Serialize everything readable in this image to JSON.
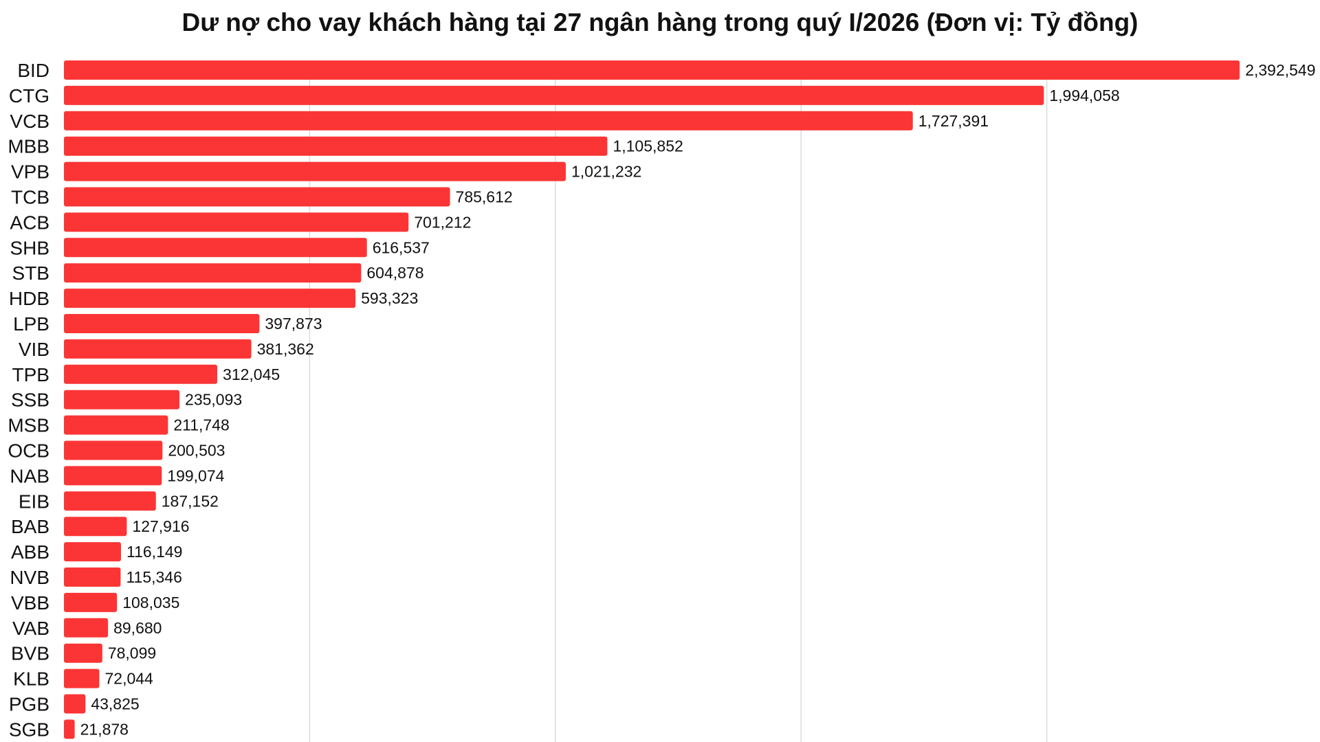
{
  "chart_data": {
    "type": "bar",
    "orientation": "horizontal",
    "title": "Dư nợ cho vay khách hàng tại 27 ngân hàng trong quý I/2026 (Đơn vị: Tỷ đồng)",
    "xlabel": "",
    "ylabel": "",
    "xlim": [
      0,
      2500000
    ],
    "grid": true,
    "bar_color": "#fb3535",
    "categories": [
      "BID",
      "CTG",
      "VCB",
      "MBB",
      "VPB",
      "TCB",
      "ACB",
      "SHB",
      "STB",
      "HDB",
      "LPB",
      "VIB",
      "TPB",
      "SSB",
      "MSB",
      "OCB",
      "NAB",
      "EIB",
      "BAB",
      "ABB",
      "NVB",
      "VBB",
      "VAB",
      "BVB",
      "KLB",
      "PGB",
      "SGB"
    ],
    "values": [
      2392549,
      1994058,
      1727391,
      1105852,
      1021232,
      785612,
      701212,
      616537,
      604878,
      593323,
      397873,
      381362,
      312045,
      235093,
      211748,
      200503,
      199074,
      187152,
      127916,
      116149,
      115346,
      108035,
      89680,
      78099,
      72044,
      43825,
      21878
    ],
    "value_labels": [
      "2,392,549",
      "1,994,058",
      "1,727,391",
      "1,105,852",
      "1,021,232",
      "785,612",
      "701,212",
      "616,537",
      "604,878",
      "593,323",
      "397,873",
      "381,362",
      "312,045",
      "235,093",
      "211,748",
      "200,503",
      "199,074",
      "187,152",
      "127,916",
      "116,149",
      "115,346",
      "108,035",
      "89,680",
      "78,099",
      "72,044",
      "43,825",
      "21,878"
    ]
  }
}
